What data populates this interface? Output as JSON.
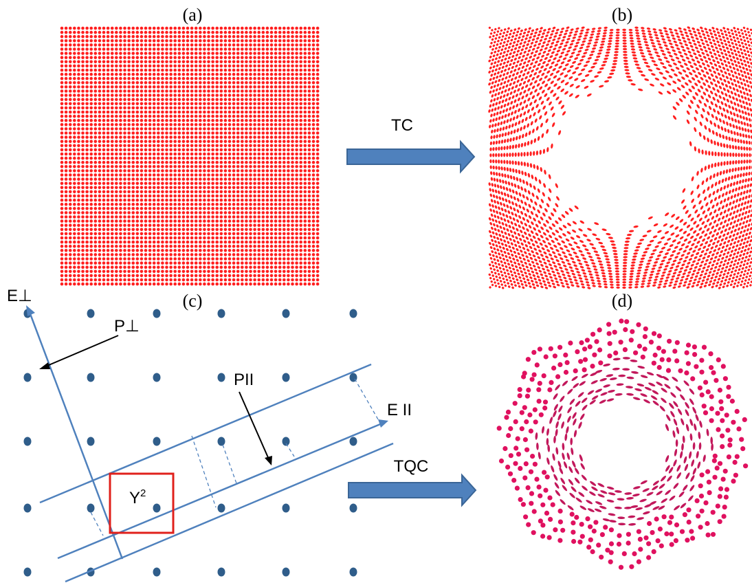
{
  "panels": {
    "a": "(a)",
    "b": "(b)",
    "c": "(c)",
    "d": "(d)"
  },
  "arrows": {
    "top": "TC",
    "bottom": "TQC"
  },
  "labels": {
    "e_perp": "E⊥",
    "p_perp": "P⊥",
    "p_par": "PII",
    "e_par": "E II",
    "y2_base": "Y",
    "y2_exp": "2"
  },
  "colors": {
    "lattice_red": "#ff1f1f",
    "quasi_magenta": "#e0115f",
    "blue_dot": "#2f5d8a",
    "line_blue": "#4f81bd",
    "arrow_fill": "#4f81bd",
    "arrow_stroke": "#3a6596",
    "window_red": "#e0201b"
  }
}
